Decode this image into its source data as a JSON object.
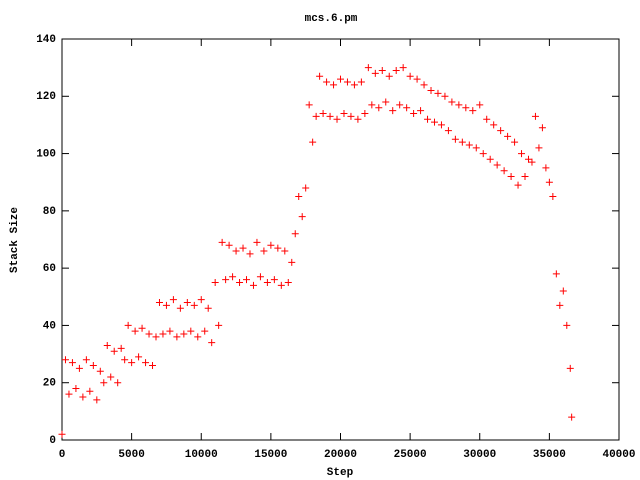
{
  "chart_data": {
    "type": "scatter",
    "title": "mcs.6.pm",
    "xlabel": "Step",
    "ylabel": "Stack Size",
    "marker": "+",
    "grid": false,
    "xlim": [
      0,
      40000
    ],
    "xticks": [
      0,
      5000,
      10000,
      15000,
      20000,
      25000,
      30000,
      35000,
      40000
    ],
    "ylim": [
      0,
      140
    ],
    "yticks": [
      0,
      20,
      40,
      60,
      80,
      100,
      120,
      140
    ],
    "series": [
      {
        "color": "#ff0000",
        "x": [
          0,
          250,
          500,
          750,
          1000,
          1250,
          1500,
          1750,
          2000,
          2250,
          2500,
          2750,
          3000,
          3250,
          3500,
          3750,
          4000,
          4250,
          4500,
          4750,
          5000,
          5250,
          5500,
          5750,
          6000,
          6250,
          6500,
          6750,
          7000,
          7250,
          7500,
          7750,
          8000,
          8250,
          8500,
          8750,
          9000,
          9250,
          9500,
          9750,
          10000,
          10250,
          10500,
          10750,
          11000,
          11250,
          11500,
          11750,
          12000,
          12250,
          12500,
          12750,
          13000,
          13250,
          13500,
          13750,
          14000,
          14250,
          14500,
          14750,
          15000,
          15250,
          15500,
          15750,
          16000,
          16250,
          16500,
          16750,
          17000,
          17250,
          17500,
          17750,
          18000,
          18250,
          18500,
          18750,
          19000,
          19250,
          19500,
          19750,
          20000,
          20250,
          20500,
          20750,
          21000,
          21250,
          21500,
          21750,
          22000,
          22250,
          22500,
          22750,
          23000,
          23250,
          23500,
          23750,
          24000,
          24250,
          24500,
          24750,
          25000,
          25250,
          25500,
          25750,
          26000,
          26250,
          26500,
          26750,
          27000,
          27250,
          27500,
          27750,
          28000,
          28250,
          28500,
          28750,
          29000,
          29250,
          29500,
          29750,
          30000,
          30250,
          30500,
          30750,
          31000,
          31250,
          31500,
          31750,
          32000,
          32250,
          32500,
          32750,
          33000,
          33250,
          33500,
          33750,
          34000,
          34250,
          34500,
          34750,
          35000,
          35250,
          35500,
          35750,
          36000,
          36250,
          36500,
          36600
        ],
        "values": [
          2,
          28,
          16,
          27,
          18,
          25,
          15,
          28,
          17,
          26,
          14,
          24,
          20,
          33,
          22,
          31,
          20,
          32,
          28,
          40,
          27,
          38,
          29,
          39,
          27,
          37,
          26,
          36,
          48,
          37,
          47,
          38,
          49,
          36,
          46,
          37,
          48,
          38,
          47,
          36,
          49,
          38,
          46,
          34,
          55,
          40,
          69,
          56,
          68,
          57,
          66,
          55,
          67,
          56,
          65,
          54,
          69,
          57,
          66,
          55,
          68,
          56,
          67,
          54,
          66,
          55,
          62,
          72,
          85,
          78,
          88,
          117,
          104,
          113,
          127,
          114,
          125,
          113,
          124,
          112,
          126,
          114,
          125,
          113,
          124,
          112,
          125,
          114,
          130,
          117,
          128,
          116,
          129,
          118,
          127,
          115,
          129,
          117,
          130,
          116,
          127,
          114,
          126,
          115,
          124,
          112,
          122,
          111,
          121,
          110,
          120,
          108,
          118,
          105,
          117,
          104,
          116,
          103,
          115,
          102,
          117,
          100,
          112,
          98,
          110,
          96,
          108,
          94,
          106,
          92,
          104,
          89,
          100,
          92,
          98,
          97,
          113,
          102,
          109,
          95,
          90,
          85,
          58,
          47,
          52,
          40,
          25,
          8
        ]
      }
    ]
  }
}
